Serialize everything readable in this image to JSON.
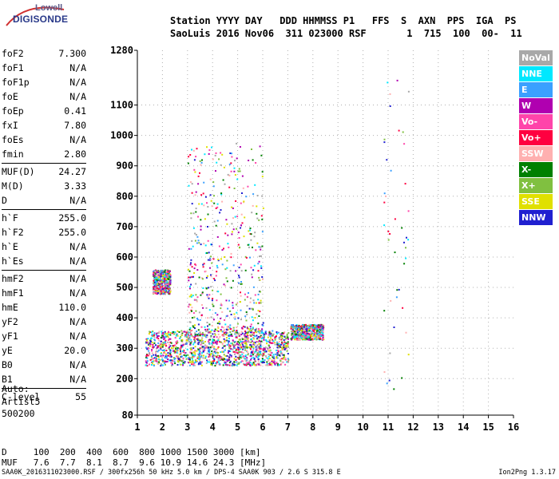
{
  "logo": {
    "line1": "Lowell",
    "line2": "DIGISONDE"
  },
  "header": {
    "line1": "Station YYYY DAY   DDD HHMMSS P1   FFS  S  AXN  PPS  IGA  PS",
    "line2": "SaoLuis 2016 Nov06  311 023000 RSF       1  715  100  00-  11"
  },
  "params": {
    "group1": [
      {
        "name": "foF2",
        "value": "7.300"
      },
      {
        "name": "foF1",
        "value": "N/A"
      },
      {
        "name": "foF1p",
        "value": "N/A"
      },
      {
        "name": "foE",
        "value": "N/A"
      },
      {
        "name": "foEp",
        "value": "0.41"
      },
      {
        "name": "fxI",
        "value": "7.80"
      },
      {
        "name": "foEs",
        "value": "N/A"
      },
      {
        "name": "fmin",
        "value": "2.80"
      }
    ],
    "group2": [
      {
        "name": "MUF(D)",
        "value": "24.27"
      },
      {
        "name": "M(D)",
        "value": "3.33"
      },
      {
        "name": "D",
        "value": "N/A"
      }
    ],
    "group3": [
      {
        "name": "h`F",
        "value": "255.0"
      },
      {
        "name": "h`F2",
        "value": "255.0"
      },
      {
        "name": "h`E",
        "value": "N/A"
      },
      {
        "name": "h`Es",
        "value": "N/A"
      }
    ],
    "group4": [
      {
        "name": "hmF2",
        "value": "N/A"
      },
      {
        "name": "hmF1",
        "value": "N/A"
      },
      {
        "name": "hmE",
        "value": "110.0"
      },
      {
        "name": "yF2",
        "value": "N/A"
      },
      {
        "name": "yF1",
        "value": "N/A"
      },
      {
        "name": "yE",
        "value": "20.0"
      },
      {
        "name": "B0",
        "value": "N/A"
      },
      {
        "name": "B1",
        "value": "N/A"
      }
    ],
    "group5": [
      {
        "name": "C-level",
        "value": "55"
      }
    ]
  },
  "auto": {
    "line1": "Auto:",
    "line2": "Artist5",
    "line3": "500200"
  },
  "bottom": {
    "line1": "D     100  200  400  600  800 1000 1500 3000 [km]",
    "line2": "MUF   7.6  7.7  8.1  8.7  9.6 10.9 14.6 24.3 [MHz]",
    "footer": "SAA0K_2016311023000.RSF / 300fx256h 50 kHz 5.0 km / DPS-4 SAA0K 903 / 2.6 S 315.8 E",
    "version": "Ion2Png 1.3.17"
  },
  "legend": [
    {
      "label": "NoVal",
      "color": "#a8a8a8"
    },
    {
      "label": "NNE",
      "color": "#00e8ff"
    },
    {
      "label": "E",
      "color": "#3aa0ff"
    },
    {
      "label": "W",
      "color": "#b000b0"
    },
    {
      "label": "Vo-",
      "color": "#ff44aa"
    },
    {
      "label": "Vo+",
      "color": "#ff0040"
    },
    {
      "label": "SSW",
      "color": "#ffb0b0"
    },
    {
      "label": "X-",
      "color": "#008000"
    },
    {
      "label": "X+",
      "color": "#80c040"
    },
    {
      "label": "SSE",
      "color": "#e0e000"
    },
    {
      "label": "NNW",
      "color": "#2020d0"
    }
  ],
  "chart_data": {
    "type": "scatter",
    "xlim": [
      1,
      16
    ],
    "ylim": [
      80,
      1280
    ],
    "x_ticks": [
      1,
      2,
      3,
      4,
      5,
      6,
      7,
      8,
      9,
      10,
      11,
      12,
      13,
      14,
      15,
      16
    ],
    "y_ticks": [
      80,
      200,
      300,
      400,
      500,
      600,
      700,
      800,
      900,
      1000,
      1100,
      1280
    ],
    "grid": true,
    "legend_position": "right",
    "clusters": [
      {
        "x": [
          1.3,
          7.0
        ],
        "y": [
          245,
          360
        ],
        "density": "high",
        "note": "main trace"
      },
      {
        "x": [
          3.0,
          6.0
        ],
        "y": [
          360,
          980
        ],
        "density": "medium",
        "note": "spread echoes"
      },
      {
        "x": [
          1.6,
          2.3
        ],
        "y": [
          480,
          560
        ],
        "density": "medium",
        "note": "multi-hop"
      },
      {
        "x": [
          7.1,
          8.4
        ],
        "y": [
          330,
          380
        ],
        "density": "medium",
        "note": "trace end"
      },
      {
        "x": [
          10.8,
          11.8
        ],
        "y": [
          150,
          1260
        ],
        "density": "low",
        "note": "sparse column"
      }
    ]
  }
}
